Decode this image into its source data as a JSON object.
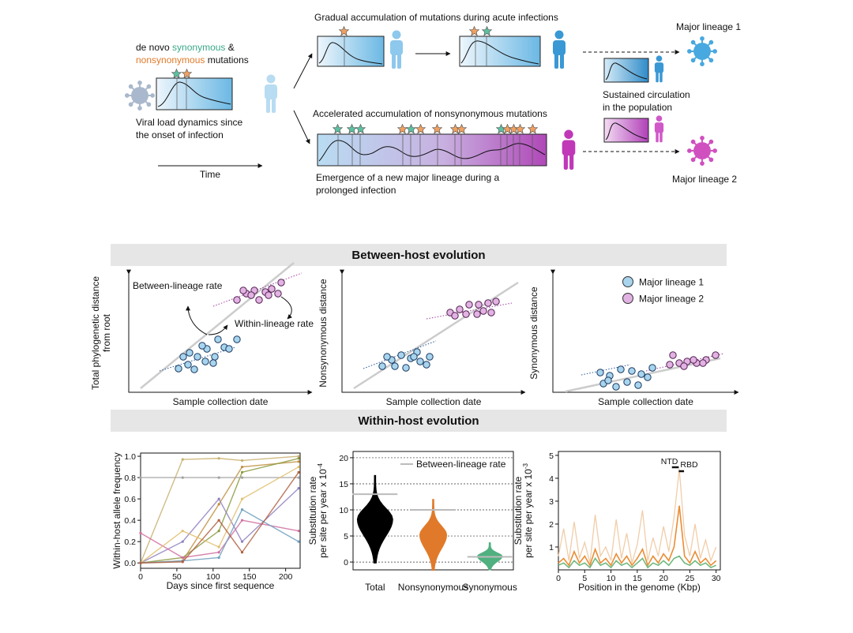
{
  "diagram": {
    "denovo": "de novo",
    "synonymous": "synonymous",
    "amp": "&",
    "nonsynonymous": "nonsynonymous",
    "mutations": "mutations",
    "viral_load": [
      "Viral load dynamics since",
      "the onset of infection"
    ],
    "time": "Time",
    "acute": "Gradual accumulation of mutations during acute infections",
    "accelerated": "Accelerated accumulation of nonsynonymous mutations",
    "emergence": [
      "Emergence of a new major lineage during a",
      "prolonged infection"
    ],
    "sustained": [
      "Sustained circulation",
      "in the population"
    ],
    "lineage1": "Major lineage 1",
    "lineage2": "Major lineage 2"
  },
  "between": {
    "title": "Between-host evolution",
    "panels": [
      {
        "ylabel": [
          "Total phylogenetic distance",
          "from root"
        ],
        "xlabel": "Sample collection date",
        "annotations": [
          "Between-lineage rate",
          "Within-lineage rate"
        ]
      },
      {
        "ylabel": [
          "Nonsynonymous distance"
        ],
        "xlabel": "Sample collection date"
      },
      {
        "ylabel": [
          "Synonymous distance"
        ],
        "xlabel": "Sample collection date"
      }
    ],
    "legend": [
      {
        "name": "Major lineage 1",
        "color": "#a8d4ee"
      },
      {
        "name": "Major lineage 2",
        "color": "#e2b2e2"
      }
    ]
  },
  "within": {
    "title": "Within-host evolution",
    "charts": [
      {
        "type": "line",
        "xlabel": "Days since first sequence",
        "ylabel": [
          "Within-host allele frequency"
        ],
        "xlim": [
          0,
          220
        ],
        "ylim": [
          -0.05,
          1.03
        ],
        "xticks": [
          0,
          50,
          100,
          150,
          200
        ],
        "yticks": [
          {
            "value": 0,
            "label": "0.0"
          },
          {
            "value": 0.2,
            "label": "0.2"
          },
          {
            "value": 0.4,
            "label": "0.4"
          },
          {
            "value": 0.6,
            "label": "0.6"
          },
          {
            "value": 0.8,
            "label": "0.8"
          },
          {
            "value": 1,
            "label": "1.0"
          }
        ],
        "x": [
          0,
          58,
          108,
          140,
          218
        ],
        "series": [
          {
            "color": "#c8b070",
            "values": [
              0,
              0.97,
              0.98,
              0.96,
              1
            ]
          },
          {
            "color": "#c09040",
            "values": [
              0,
              0.02,
              0.55,
              0.9,
              0.95
            ]
          },
          {
            "color": "#8a9a40",
            "values": [
              0,
              0.05,
              0.3,
              0.85,
              0.98
            ]
          },
          {
            "color": "#9080c0",
            "values": [
              0,
              0.2,
              0.6,
              0.2,
              0.7
            ]
          },
          {
            "color": "#d070a0",
            "values": [
              0.28,
              0.05,
              0.1,
              0.4,
              0.3
            ]
          },
          {
            "color": "#a0a0a0",
            "values": [
              0.8,
              0.8,
              0.8,
              0.8,
              0.8
            ]
          },
          {
            "color": "#e0c070",
            "values": [
              0,
              0.3,
              0.15,
              0.6,
              0.9
            ]
          },
          {
            "color": "#70a0c0",
            "values": [
              0,
              0.02,
              0.05,
              0.5,
              0.2
            ]
          },
          {
            "color": "#b06040",
            "values": [
              0,
              0.01,
              0.4,
              0.1,
              0.85
            ]
          }
        ]
      },
      {
        "type": "violin",
        "ylabel": [
          "Substitution rate",
          "per site per year x 10"
        ],
        "yexp": "-4",
        "ylim": [
          -1.5,
          21.2
        ],
        "yticks": [
          0,
          5,
          10,
          15,
          20
        ],
        "categories": [
          "Total",
          "Nonsynonymous",
          "Synonymous"
        ],
        "values": [
          8.2,
          5.2,
          1.1
        ],
        "colors": [
          "#000000",
          "#e07a2a",
          "#50b080"
        ],
        "between_rate": [
          13,
          10,
          1
        ],
        "legend": "Between-lineage rate"
      },
      {
        "type": "genome",
        "xlabel": "Position in the genome (Kbp)",
        "ylabel": [
          "Substitution rate",
          "per site per year x 10"
        ],
        "yexp": "-3",
        "xlim": [
          0,
          30.8
        ],
        "ylim": [
          0,
          5.17
        ],
        "xticks": [
          0,
          5,
          10,
          15,
          20,
          25,
          30
        ],
        "yticks": [
          1,
          2,
          3,
          4,
          5
        ],
        "annotations": [
          "NTD",
          "RBD"
        ],
        "x": [
          0,
          1,
          2,
          3,
          4,
          5,
          6,
          7,
          8,
          9,
          10,
          11,
          12,
          13,
          14,
          15,
          16,
          17,
          18,
          19,
          20,
          21,
          22,
          23,
          24,
          25,
          26,
          27,
          28,
          29,
          30
        ],
        "series": [
          {
            "color": "#eec8a0",
            "values": [
              0.6,
              1.8,
              0.4,
              2.1,
              0.5,
              1.2,
              0.3,
              2.4,
              0.6,
              1.0,
              0.4,
              2.2,
              0.5,
              1.6,
              0.3,
              1.1,
              2.6,
              0.4,
              1.4,
              0.6,
              1.9,
              0.8,
              2.3,
              4.4,
              1.5,
              0.6,
              2.0,
              0.5,
              1.3,
              0.4,
              1.0
            ]
          },
          {
            "color": "#e8801e",
            "values": [
              0.3,
              0.5,
              0.2,
              0.8,
              0.3,
              0.6,
              0.2,
              0.9,
              0.3,
              0.5,
              0.2,
              0.7,
              0.3,
              0.6,
              0.2,
              0.5,
              0.9,
              0.2,
              0.6,
              0.3,
              0.7,
              0.4,
              1.0,
              2.8,
              0.6,
              0.3,
              0.8,
              0.3,
              0.5,
              0.2,
              0.4
            ]
          },
          {
            "color": "#60b070",
            "values": [
              0.2,
              0.3,
              0.1,
              0.4,
              0.2,
              0.3,
              0.1,
              0.5,
              0.2,
              0.3,
              0.1,
              0.4,
              0.2,
              0.3,
              0.1,
              0.3,
              0.5,
              0.1,
              0.3,
              0.2,
              0.4,
              0.2,
              0.5,
              0.6,
              0.3,
              0.2,
              0.4,
              0.2,
              0.3,
              0.1,
              0.2
            ]
          }
        ]
      }
    ]
  }
}
